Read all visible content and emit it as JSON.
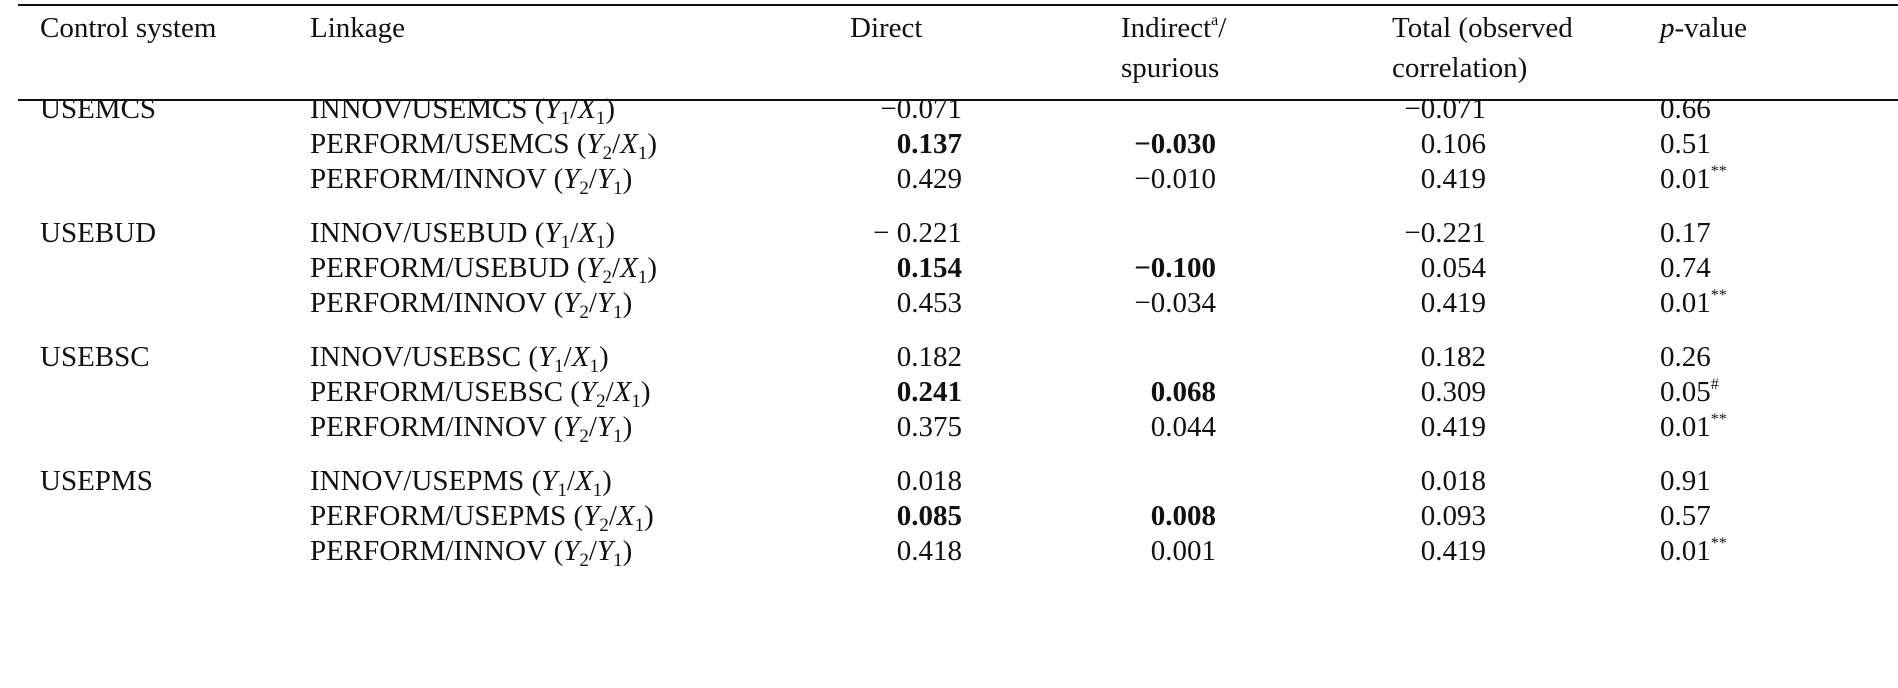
{
  "table": {
    "headers": {
      "control": "Control system",
      "linkage": "Linkage",
      "direct": "Direct",
      "indirect_1": "Indirect",
      "indirect_sup": "a",
      "indirect_2": "/",
      "indirect_line2": "spurious",
      "total_line1": "Total (observed",
      "total_line2": "correlation)",
      "pval_italic": "p",
      "pval_rest": "-value"
    },
    "groups": [
      {
        "system": "USEMCS",
        "rows": [
          {
            "linkage": "INNOV/USEMCS",
            "y": "Y",
            "ysub": "1",
            "x": "X",
            "xsub": "1",
            "direct": "−0.071",
            "direct_bold": false,
            "indirect": "",
            "indirect_bold": false,
            "total": "−0.071",
            "p": "0.66",
            "p_mark": ""
          },
          {
            "linkage": "PERFORM/USEMCS",
            "y": "Y",
            "ysub": "2",
            "x": "X",
            "xsub": "1",
            "direct": "0.137",
            "direct_bold": true,
            "indirect": "−0.030",
            "indirect_bold": true,
            "total": "0.106",
            "p": "0.51",
            "p_mark": ""
          },
          {
            "linkage": "PERFORM/INNOV",
            "y": "Y",
            "ysub": "2",
            "x": "Y",
            "xsub": "1",
            "direct": "0.429",
            "direct_bold": false,
            "indirect": "−0.010",
            "indirect_bold": false,
            "total": "0.419",
            "p": "0.01",
            "p_mark": "**"
          }
        ]
      },
      {
        "system": "USEBUD",
        "rows": [
          {
            "linkage": "INNOV/USEBUD",
            "y": "Y",
            "ysub": "1",
            "x": "X",
            "xsub": "1",
            "direct": "− 0.221",
            "direct_bold": false,
            "indirect": "",
            "indirect_bold": false,
            "total": "−0.221",
            "p": "0.17",
            "p_mark": ""
          },
          {
            "linkage": "PERFORM/USEBUD",
            "y": "Y",
            "ysub": "2",
            "x": "X",
            "xsub": "1",
            "direct": "0.154",
            "direct_bold": true,
            "indirect": "−0.100",
            "indirect_bold": true,
            "total": "0.054",
            "p": "0.74",
            "p_mark": ""
          },
          {
            "linkage": "PERFORM/INNOV",
            "y": "Y",
            "ysub": "2",
            "x": "Y",
            "xsub": "1",
            "direct": "0.453",
            "direct_bold": false,
            "indirect": "−0.034",
            "indirect_bold": false,
            "total": "0.419",
            "p": "0.01",
            "p_mark": "**"
          }
        ]
      },
      {
        "system": "USEBSC",
        "rows": [
          {
            "linkage": "INNOV/USEBSC",
            "y": "Y",
            "ysub": "1",
            "x": "X",
            "xsub": "1",
            "direct": "0.182",
            "direct_bold": false,
            "indirect": "",
            "indirect_bold": false,
            "total": "0.182",
            "p": "0.26",
            "p_mark": ""
          },
          {
            "linkage": "PERFORM/USEBSC",
            "y": "Y",
            "ysub": "2",
            "x": "X",
            "xsub": "1",
            "direct": "0.241",
            "direct_bold": true,
            "indirect": "0.068",
            "indirect_bold": true,
            "total": "0.309",
            "p": "0.05",
            "p_mark": "#"
          },
          {
            "linkage": "PERFORM/INNOV",
            "y": "Y",
            "ysub": "2",
            "x": "Y",
            "xsub": "1",
            "direct": "0.375",
            "direct_bold": false,
            "indirect": "0.044",
            "indirect_bold": false,
            "total": "0.419",
            "p": "0.01",
            "p_mark": "**"
          }
        ]
      },
      {
        "system": "USEPMS",
        "rows": [
          {
            "linkage": "INNOV/USEPMS",
            "y": "Y",
            "ysub": "1",
            "x": "X",
            "xsub": "1",
            "direct": "0.018",
            "direct_bold": false,
            "indirect": "",
            "indirect_bold": false,
            "total": "0.018",
            "p": "0.91",
            "p_mark": ""
          },
          {
            "linkage": "PERFORM/USEPMS",
            "y": "Y",
            "ysub": "2",
            "x": "X",
            "xsub": "1",
            "direct": "0.085",
            "direct_bold": true,
            "indirect": "0.008",
            "indirect_bold": true,
            "total": "0.093",
            "p": "0.57",
            "p_mark": ""
          },
          {
            "linkage": "PERFORM/INNOV",
            "y": "Y",
            "ysub": "2",
            "x": "Y",
            "xsub": "1",
            "direct": "0.418",
            "direct_bold": false,
            "indirect": "0.001",
            "indirect_bold": false,
            "total": "0.419",
            "p": "0.01",
            "p_mark": "**"
          }
        ]
      }
    ]
  }
}
